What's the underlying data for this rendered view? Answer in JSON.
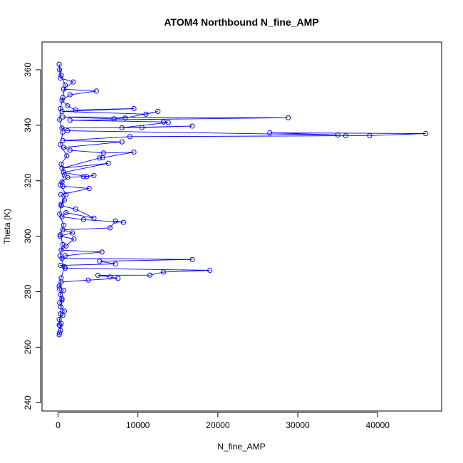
{
  "chart_data": {
    "type": "scatter",
    "title": "ATOM4 Northbound N_fine_AMP",
    "xlabel": "N_fine_AMP",
    "ylabel": "Theta (K)",
    "xlim": [
      -2000,
      48000
    ],
    "ylim": [
      237,
      370
    ],
    "xticks": [
      0,
      10000,
      20000,
      30000,
      40000
    ],
    "xtick_labels": [
      "0",
      "10000",
      "20000",
      "30000",
      "40000"
    ],
    "yticks": [
      240,
      260,
      280,
      300,
      320,
      340,
      360
    ],
    "ytick_labels": [
      "240",
      "260",
      "280",
      "300",
      "320",
      "340",
      "360"
    ],
    "grid": false,
    "connected": true,
    "color": "#0000ff",
    "series": [
      {
        "points": [
          [
            150,
            264.5
          ],
          [
            200,
            265.2
          ],
          [
            300,
            266
          ],
          [
            250,
            267.8
          ],
          [
            400,
            268.5
          ],
          [
            150,
            270
          ],
          [
            600,
            271.5
          ],
          [
            800,
            273
          ],
          [
            350,
            274.5
          ],
          [
            200,
            276
          ],
          [
            500,
            277.5
          ],
          [
            300,
            279
          ],
          [
            700,
            280.5
          ],
          [
            150,
            282
          ],
          [
            400,
            283.5
          ],
          [
            3800,
            284.2
          ],
          [
            7500,
            284.8
          ],
          [
            6500,
            285.3
          ],
          [
            5000,
            285.9
          ],
          [
            11500,
            286
          ],
          [
            13200,
            287.1
          ],
          [
            19000,
            287.7
          ],
          [
            900,
            288.5
          ],
          [
            300,
            289.5
          ],
          [
            7200,
            290
          ],
          [
            5200,
            291
          ],
          [
            16800,
            291.6
          ],
          [
            500,
            292
          ],
          [
            900,
            293
          ],
          [
            5500,
            294.3
          ],
          [
            400,
            295
          ],
          [
            1000,
            296.5
          ],
          [
            2000,
            299
          ],
          [
            250,
            300
          ],
          [
            1800,
            301.2
          ],
          [
            600,
            302.3
          ],
          [
            6500,
            303
          ],
          [
            7200,
            305.5
          ],
          [
            8200,
            305
          ],
          [
            3200,
            306
          ],
          [
            500,
            307
          ],
          [
            1000,
            308.5
          ],
          [
            4500,
            306.5
          ],
          [
            2200,
            309.8
          ],
          [
            400,
            311
          ],
          [
            800,
            313
          ],
          [
            350,
            315
          ],
          [
            3900,
            317.2
          ],
          [
            600,
            318
          ],
          [
            500,
            319.5
          ],
          [
            1200,
            321.2
          ],
          [
            3200,
            321.5
          ],
          [
            4500,
            321.9
          ],
          [
            3600,
            321.5
          ],
          [
            700,
            323
          ],
          [
            6300,
            326.3
          ],
          [
            500,
            324.5
          ],
          [
            5200,
            328.2
          ],
          [
            5600,
            328.3
          ],
          [
            9500,
            330.3
          ],
          [
            5700,
            330
          ],
          [
            1500,
            331
          ],
          [
            700,
            332
          ],
          [
            8000,
            334
          ],
          [
            600,
            334.5
          ],
          [
            9000,
            335.9
          ],
          [
            36000,
            336.2
          ],
          [
            39000,
            336.3
          ],
          [
            46000,
            337
          ],
          [
            26500,
            337.3
          ],
          [
            35000,
            336.5
          ],
          [
            1200,
            338
          ],
          [
            500,
            339
          ],
          [
            10500,
            339.2
          ],
          [
            16800,
            339.7
          ],
          [
            8000,
            339.1
          ],
          [
            13800,
            341
          ],
          [
            13200,
            341.2
          ],
          [
            1500,
            341.8
          ],
          [
            28800,
            342.7
          ],
          [
            600,
            343
          ],
          [
            7000,
            342.3
          ],
          [
            8400,
            342.6
          ],
          [
            12500,
            345
          ],
          [
            11000,
            344
          ],
          [
            500,
            345
          ],
          [
            9500,
            346
          ],
          [
            2200,
            345.5
          ],
          [
            1200,
            347
          ],
          [
            500,
            349
          ],
          [
            1500,
            351
          ],
          [
            4800,
            352.3
          ],
          [
            700,
            353
          ],
          [
            1900,
            355.6
          ],
          [
            300,
            357
          ],
          [
            200,
            360
          ],
          [
            150,
            362
          ],
          [
            400,
            358
          ],
          [
            900,
            354.5
          ],
          [
            600,
            350
          ],
          [
            300,
            346
          ],
          [
            200,
            342
          ],
          [
            600,
            337.5
          ],
          [
            300,
            333
          ],
          [
            1100,
            329
          ],
          [
            400,
            326
          ],
          [
            800,
            322
          ],
          [
            300,
            318.5
          ],
          [
            1000,
            315
          ],
          [
            400,
            311.5
          ],
          [
            200,
            308
          ],
          [
            700,
            304
          ],
          [
            300,
            300.5
          ],
          [
            600,
            297
          ],
          [
            250,
            293
          ],
          [
            800,
            289
          ],
          [
            400,
            285
          ],
          [
            200,
            281
          ],
          [
            500,
            277
          ],
          [
            300,
            272
          ],
          [
            150,
            268
          ]
        ]
      }
    ]
  }
}
